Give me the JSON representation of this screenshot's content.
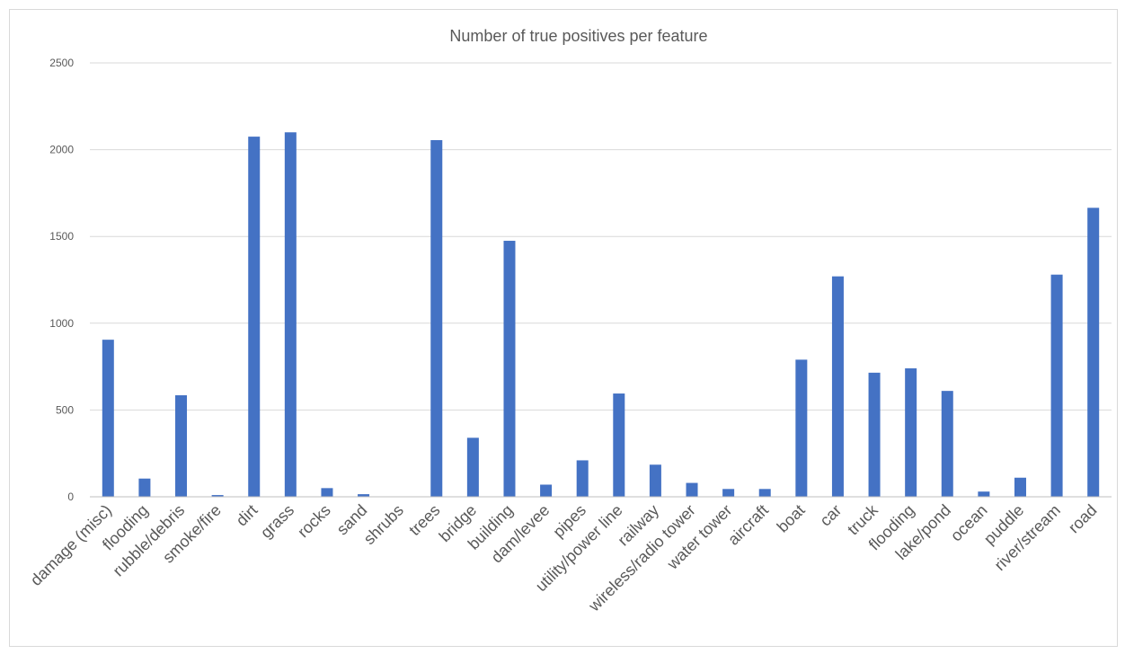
{
  "chart_data": {
    "type": "bar",
    "title": "Number of true positives per feature",
    "xlabel": "",
    "ylabel": "",
    "ylim": [
      0,
      2500
    ],
    "yticks": [
      0,
      500,
      1000,
      1500,
      2000,
      2500
    ],
    "grid": true,
    "legend": "none",
    "bar_color": "#4472c4",
    "categories": [
      "damage (misc)",
      "flooding",
      "rubble/debris",
      "smoke/fire",
      "dirt",
      "grass",
      "rocks",
      "sand",
      "shrubs",
      "trees",
      "bridge",
      "building",
      "dam/levee",
      "pipes",
      "utility/power line",
      "railway",
      "wireless/radio tower",
      "water tower",
      "aircraft",
      "boat",
      "car",
      "truck",
      "flooding",
      "lake/pond",
      "ocean",
      "puddle",
      "river/stream",
      "road"
    ],
    "values": [
      905,
      105,
      585,
      10,
      2075,
      2100,
      50,
      15,
      0,
      2055,
      340,
      1475,
      70,
      210,
      595,
      185,
      80,
      45,
      45,
      790,
      1270,
      715,
      740,
      610,
      30,
      110,
      1280,
      1665
    ]
  }
}
